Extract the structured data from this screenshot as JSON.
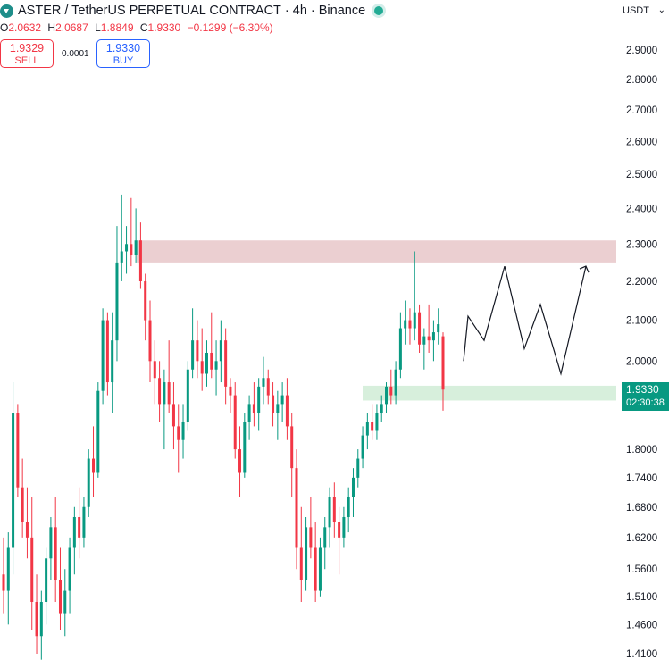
{
  "header": {
    "symbol": "ASTER / TetherUS PERPETUAL CONTRACT",
    "sep1": "·",
    "interval": "4h",
    "sep2": "·",
    "exchange": "Binance",
    "logo_icon": "aster-logo-icon",
    "status_icon": "market-open-dot-icon"
  },
  "ohlc": {
    "o_label": "O",
    "o_value": "2.0632",
    "h_label": "H",
    "h_value": "2.0687",
    "l_label": "L",
    "l_value": "1.8849",
    "c_label": "C",
    "c_value": "1.9330",
    "change": "−0.1299 (−6.30%)"
  },
  "trade": {
    "sell_price": "1.9329",
    "sell_label": "SELL",
    "spread": "0.0001",
    "buy_price": "1.9330",
    "buy_label": "BUY"
  },
  "currency_selector": {
    "value": "USDT"
  },
  "last_price": {
    "price": "1.9330",
    "countdown": "02:30:38",
    "color": "#089981"
  },
  "colors": {
    "up": "#089981",
    "down": "#f23645",
    "resistance": "#e6c3c6",
    "support": "#cdebd3",
    "axis_text": "#131722"
  },
  "chart_data": {
    "type": "candlestick",
    "yscale": "log",
    "ylim": [
      1.395,
      3.03
    ],
    "yticks": [
      "2.9000",
      "2.8000",
      "2.7000",
      "2.6000",
      "2.5000",
      "2.4000",
      "2.3000",
      "2.2000",
      "2.1000",
      "2.0000",
      "1.8000",
      "1.7400",
      "1.6800",
      "1.6200",
      "1.5600",
      "1.5100",
      "1.4600",
      "1.4100"
    ],
    "zones": [
      {
        "type": "resistance",
        "from": 2.25,
        "to": 2.31,
        "color": "#e6c3c6"
      },
      {
        "type": "support",
        "from": 1.908,
        "to": 1.942,
        "color": "#cdebd3"
      }
    ],
    "projection": [
      2.0,
      2.11,
      2.05,
      2.24,
      2.03,
      2.14,
      1.97,
      2.24
    ],
    "candles": [
      [
        1.55,
        1.62,
        1.48,
        1.52
      ],
      [
        1.52,
        1.63,
        1.46,
        1.6
      ],
      [
        1.6,
        1.95,
        1.55,
        1.88
      ],
      [
        1.88,
        1.9,
        1.7,
        1.72
      ],
      [
        1.72,
        1.78,
        1.62,
        1.65
      ],
      [
        1.65,
        1.72,
        1.58,
        1.62
      ],
      [
        1.62,
        1.7,
        1.45,
        1.5
      ],
      [
        1.5,
        1.55,
        1.41,
        1.44
      ],
      [
        1.44,
        1.52,
        1.4,
        1.5
      ],
      [
        1.5,
        1.6,
        1.46,
        1.58
      ],
      [
        1.58,
        1.66,
        1.54,
        1.64
      ],
      [
        1.64,
        1.7,
        1.5,
        1.54
      ],
      [
        1.54,
        1.6,
        1.45,
        1.48
      ],
      [
        1.48,
        1.56,
        1.44,
        1.52
      ],
      [
        1.52,
        1.62,
        1.48,
        1.6
      ],
      [
        1.6,
        1.68,
        1.55,
        1.66
      ],
      [
        1.66,
        1.72,
        1.58,
        1.62
      ],
      [
        1.62,
        1.7,
        1.6,
        1.68
      ],
      [
        1.68,
        1.8,
        1.66,
        1.78
      ],
      [
        1.78,
        1.85,
        1.7,
        1.75
      ],
      [
        1.75,
        1.95,
        1.74,
        1.93
      ],
      [
        1.93,
        2.13,
        1.9,
        2.1
      ],
      [
        2.1,
        2.12,
        1.92,
        1.95
      ],
      [
        1.95,
        2.12,
        1.88,
        2.05
      ],
      [
        2.05,
        2.35,
        2.0,
        2.25
      ],
      [
        2.25,
        2.44,
        2.2,
        2.28
      ],
      [
        2.28,
        2.35,
        2.22,
        2.3
      ],
      [
        2.3,
        2.43,
        2.24,
        2.27
      ],
      [
        2.27,
        2.4,
        2.25,
        2.31
      ],
      [
        2.31,
        2.36,
        2.18,
        2.2
      ],
      [
        2.2,
        2.22,
        2.05,
        2.1
      ],
      [
        2.1,
        2.15,
        1.95,
        2.0
      ],
      [
        2.0,
        2.05,
        1.9,
        1.96
      ],
      [
        1.96,
        2.0,
        1.86,
        1.9
      ],
      [
        1.9,
        1.98,
        1.8,
        1.95
      ],
      [
        1.95,
        2.05,
        1.88,
        1.9
      ],
      [
        1.9,
        1.95,
        1.8,
        1.85
      ],
      [
        1.85,
        1.9,
        1.75,
        1.82
      ],
      [
        1.82,
        1.9,
        1.78,
        1.86
      ],
      [
        1.86,
        2.0,
        1.84,
        1.98
      ],
      [
        1.98,
        2.13,
        1.96,
        2.05
      ],
      [
        2.05,
        2.1,
        1.96,
        2.0
      ],
      [
        2.0,
        2.08,
        1.93,
        1.97
      ],
      [
        1.97,
        2.05,
        1.94,
        2.02
      ],
      [
        2.02,
        2.12,
        1.96,
        1.98
      ],
      [
        1.98,
        2.05,
        1.92,
        2.0
      ],
      [
        2.0,
        2.1,
        1.95,
        2.05
      ],
      [
        2.05,
        2.08,
        1.9,
        1.94
      ],
      [
        1.94,
        1.96,
        1.88,
        1.92
      ],
      [
        1.92,
        1.95,
        1.78,
        1.8
      ],
      [
        1.8,
        1.85,
        1.7,
        1.75
      ],
      [
        1.75,
        1.88,
        1.74,
        1.86
      ],
      [
        1.86,
        1.92,
        1.82,
        1.9
      ],
      [
        1.9,
        1.95,
        1.85,
        1.88
      ],
      [
        1.88,
        1.96,
        1.84,
        1.94
      ],
      [
        1.94,
        2.01,
        1.9,
        1.96
      ],
      [
        1.96,
        1.98,
        1.9,
        1.92
      ],
      [
        1.92,
        1.95,
        1.85,
        1.88
      ],
      [
        1.88,
        1.93,
        1.82,
        1.9
      ],
      [
        1.9,
        1.95,
        1.86,
        1.92
      ],
      [
        1.92,
        1.96,
        1.82,
        1.85
      ],
      [
        1.85,
        1.88,
        1.7,
        1.76
      ],
      [
        1.76,
        1.8,
        1.56,
        1.6
      ],
      [
        1.6,
        1.68,
        1.5,
        1.54
      ],
      [
        1.54,
        1.66,
        1.52,
        1.64
      ],
      [
        1.64,
        1.7,
        1.58,
        1.6
      ],
      [
        1.6,
        1.65,
        1.5,
        1.52
      ],
      [
        1.52,
        1.62,
        1.51,
        1.6
      ],
      [
        1.6,
        1.66,
        1.56,
        1.64
      ],
      [
        1.64,
        1.72,
        1.6,
        1.7
      ],
      [
        1.7,
        1.73,
        1.62,
        1.65
      ],
      [
        1.65,
        1.68,
        1.55,
        1.62
      ],
      [
        1.62,
        1.68,
        1.6,
        1.66
      ],
      [
        1.66,
        1.72,
        1.63,
        1.7
      ],
      [
        1.7,
        1.76,
        1.66,
        1.74
      ],
      [
        1.74,
        1.8,
        1.72,
        1.78
      ],
      [
        1.78,
        1.85,
        1.76,
        1.83
      ],
      [
        1.83,
        1.88,
        1.8,
        1.86
      ],
      [
        1.86,
        1.9,
        1.82,
        1.84
      ],
      [
        1.84,
        1.9,
        1.82,
        1.88
      ],
      [
        1.88,
        1.92,
        1.86,
        1.9
      ],
      [
        1.9,
        1.95,
        1.88,
        1.94
      ],
      [
        1.94,
        1.98,
        1.9,
        1.92
      ],
      [
        1.92,
        2.0,
        1.9,
        1.98
      ],
      [
        1.98,
        2.12,
        1.96,
        2.08
      ],
      [
        2.08,
        2.15,
        2.04,
        2.1
      ],
      [
        2.1,
        2.13,
        2.04,
        2.08
      ],
      [
        2.08,
        2.28,
        2.05,
        2.12
      ],
      [
        2.12,
        2.14,
        2.02,
        2.04
      ],
      [
        2.04,
        2.08,
        1.98,
        2.06
      ],
      [
        2.06,
        2.14,
        2.02,
        2.05
      ],
      [
        2.05,
        2.1,
        2.0,
        2.07
      ],
      [
        2.07,
        2.13,
        2.04,
        2.09
      ],
      [
        2.06,
        2.07,
        1.885,
        1.933
      ]
    ]
  }
}
